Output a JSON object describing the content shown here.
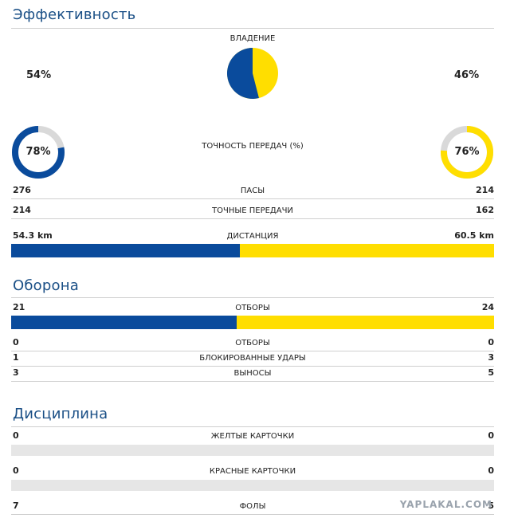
{
  "colors": {
    "team_a": "#0a4b9c",
    "team_b": "#ffde00",
    "ring_track": "#d9d9d9",
    "title": "#1a4f86"
  },
  "efficiency": {
    "title": "Эффективность",
    "possession": {
      "label": "ВЛАДЕНИЕ",
      "a": "54%",
      "b": "46%",
      "a_value": 54,
      "b_value": 46
    },
    "pass_accuracy": {
      "label": "ТОЧНОСТЬ ПЕРЕДАЧ (%)",
      "a": "78%",
      "b": "76%",
      "a_value": 78,
      "b_value": 76
    },
    "passes": {
      "label": "ПАСЫ",
      "a": "276",
      "b": "214"
    },
    "accurate_passes": {
      "label": "ТОЧНЫЕ ПЕРЕДАЧИ",
      "a": "214",
      "b": "162"
    },
    "distance": {
      "label": "ДИСТАНЦИЯ",
      "a": "54.3 km",
      "b": "60.5 km",
      "a_value": 54.3,
      "b_value": 60.5
    }
  },
  "defence": {
    "title": "Оборона",
    "tackles": {
      "label": "ОТБОРЫ",
      "a": "21",
      "b": "24",
      "a_value": 21,
      "b_value": 24
    },
    "tackles2": {
      "label": "ОТБОРЫ",
      "a": "0",
      "b": "0"
    },
    "blocked": {
      "label": "БЛОКИРОВАННЫЕ УДАРЫ",
      "a": "1",
      "b": "3"
    },
    "clearances": {
      "label": "ВЫНОСЫ",
      "a": "3",
      "b": "5"
    }
  },
  "discipline": {
    "title": "Дисциплина",
    "yellow": {
      "label": "ЖЕЛТЫЕ КАРТОЧКИ",
      "a": "0",
      "b": "0"
    },
    "red": {
      "label": "КРАСНЫЕ КАРТОЧКИ",
      "a": "0",
      "b": "0"
    },
    "fouls": {
      "label": "ФОЛЫ",
      "a": "7",
      "b": "5"
    }
  },
  "watermark": "YAPLAKAL.COM"
}
